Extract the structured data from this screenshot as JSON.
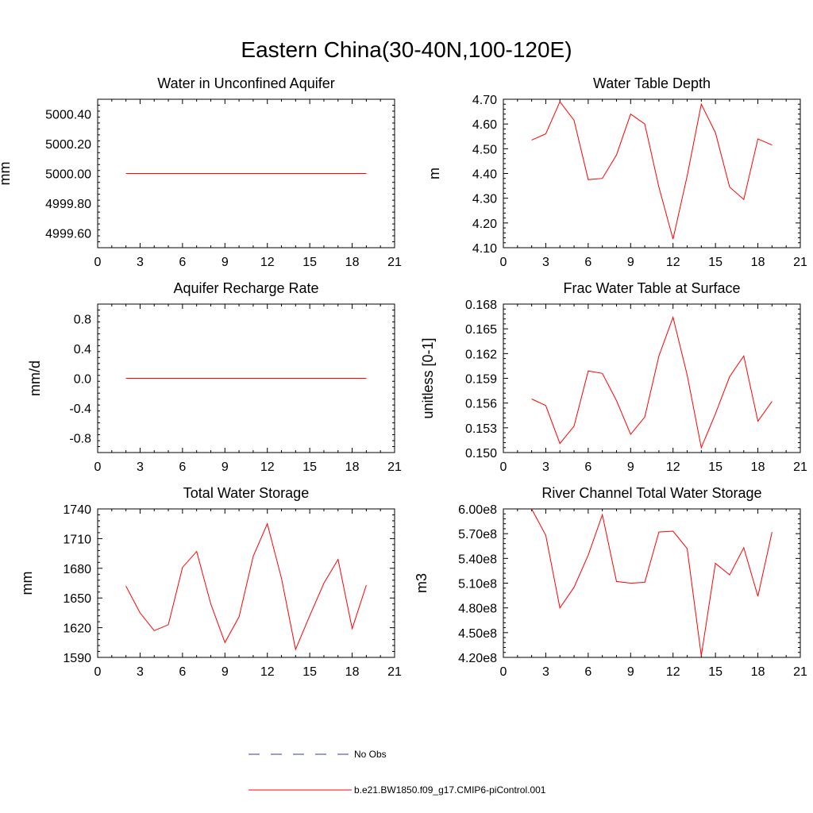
{
  "figure_title": "Eastern China(30-40N,100-120E)",
  "legend": {
    "items": [
      {
        "label": "No Obs",
        "color": "#3a3aa8",
        "dash": true
      },
      {
        "label": "b.e21.BW1850.f09_g17.CMIP6-piControl.001",
        "color": "#ff0000",
        "dash": false
      }
    ]
  },
  "chart_data": [
    {
      "type": "line",
      "title": "Water in Unconfined Aquifer",
      "ylabel": "mm",
      "xlim": [
        0,
        21
      ],
      "ylim": [
        4999.5,
        5000.5
      ],
      "xticks": [
        "0",
        "3",
        "6",
        "9",
        "12",
        "15",
        "18",
        "21"
      ],
      "yticks": [
        {
          "value": 4999.6,
          "label": "4999.60"
        },
        {
          "value": 4999.8,
          "label": "4999.80"
        },
        {
          "value": 5000.0,
          "label": "5000.00"
        },
        {
          "value": 5000.2,
          "label": "5000.20"
        },
        {
          "value": 5000.4,
          "label": "5000.40"
        }
      ],
      "x": [
        2,
        3,
        4,
        5,
        6,
        7,
        8,
        9,
        10,
        11,
        12,
        13,
        14,
        15,
        16,
        17,
        18,
        19
      ],
      "series": [
        {
          "values": [
            5000,
            5000,
            5000,
            5000,
            5000,
            5000,
            5000,
            5000,
            5000,
            5000,
            5000,
            5000,
            5000,
            5000,
            5000,
            5000,
            5000,
            5000
          ],
          "color": "#ff0000"
        }
      ]
    },
    {
      "type": "line",
      "title": "Water Table Depth",
      "ylabel": "m",
      "xlim": [
        0,
        21
      ],
      "ylim": [
        4.1,
        4.7
      ],
      "xticks": [
        "0",
        "3",
        "6",
        "9",
        "12",
        "15",
        "18",
        "21"
      ],
      "yticks": [
        {
          "value": 4.1,
          "label": "4.10"
        },
        {
          "value": 4.2,
          "label": "4.20"
        },
        {
          "value": 4.3,
          "label": "4.30"
        },
        {
          "value": 4.4,
          "label": "4.40"
        },
        {
          "value": 4.5,
          "label": "4.50"
        },
        {
          "value": 4.6,
          "label": "4.60"
        },
        {
          "value": 4.7,
          "label": "4.70"
        }
      ],
      "x": [
        2,
        3,
        4,
        5,
        6,
        7,
        8,
        9,
        10,
        11,
        12,
        13,
        14,
        15,
        16,
        17,
        18,
        19
      ],
      "series": [
        {
          "values": [
            4.535,
            4.56,
            4.69,
            4.615,
            4.375,
            4.38,
            4.475,
            4.64,
            4.6,
            4.345,
            4.135,
            4.39,
            4.68,
            4.565,
            4.345,
            4.295,
            4.54,
            4.515
          ],
          "color": "#ff0000"
        }
      ]
    },
    {
      "type": "line",
      "title": "Aquifer Recharge Rate",
      "ylabel": "mm/d",
      "xlim": [
        0,
        21
      ],
      "ylim": [
        -1,
        1
      ],
      "xticks": [
        "0",
        "3",
        "6",
        "9",
        "12",
        "15",
        "18",
        "21"
      ],
      "yticks": [
        {
          "value": -0.8,
          "label": "-0.8"
        },
        {
          "value": -0.4,
          "label": "-0.4"
        },
        {
          "value": 0.0,
          "label": "0.0"
        },
        {
          "value": 0.4,
          "label": "0.4"
        },
        {
          "value": 0.8,
          "label": "0.8"
        }
      ],
      "x": [
        2,
        3,
        4,
        5,
        6,
        7,
        8,
        9,
        10,
        11,
        12,
        13,
        14,
        15,
        16,
        17,
        18,
        19
      ],
      "series": [
        {
          "values": [
            0,
            0,
            0,
            0,
            0,
            0,
            0,
            0,
            0,
            0,
            0,
            0,
            0,
            0,
            0,
            0,
            0,
            0
          ],
          "color": "#ff0000"
        }
      ]
    },
    {
      "type": "line",
      "title": "Frac Water Table at Surface",
      "ylabel": "unitless [0-1]",
      "xlim": [
        0,
        21
      ],
      "ylim": [
        0.15,
        0.168
      ],
      "xticks": [
        "0",
        "3",
        "6",
        "9",
        "12",
        "15",
        "18",
        "21"
      ],
      "yticks": [
        {
          "value": 0.15,
          "label": "0.150"
        },
        {
          "value": 0.153,
          "label": "0.153"
        },
        {
          "value": 0.156,
          "label": "0.156"
        },
        {
          "value": 0.159,
          "label": "0.159"
        },
        {
          "value": 0.162,
          "label": "0.162"
        },
        {
          "value": 0.165,
          "label": "0.165"
        },
        {
          "value": 0.168,
          "label": "0.168"
        }
      ],
      "x": [
        2,
        3,
        4,
        5,
        6,
        7,
        8,
        9,
        10,
        11,
        12,
        13,
        14,
        15,
        16,
        17,
        18,
        19
      ],
      "series": [
        {
          "values": [
            0.1565,
            0.1557,
            0.1511,
            0.1532,
            0.1599,
            0.1596,
            0.1563,
            0.1522,
            0.1543,
            0.1617,
            0.1664,
            0.1594,
            0.1506,
            0.1547,
            0.1592,
            0.1617,
            0.1538,
            0.1562
          ],
          "color": "#ff0000"
        }
      ]
    },
    {
      "type": "line",
      "title": "Total Water Storage",
      "ylabel": "mm",
      "xlim": [
        0,
        21
      ],
      "ylim": [
        1590,
        1740
      ],
      "xticks": [
        "0",
        "3",
        "6",
        "9",
        "12",
        "15",
        "18",
        "21"
      ],
      "yticks": [
        {
          "value": 1590,
          "label": "1590"
        },
        {
          "value": 1620,
          "label": "1620"
        },
        {
          "value": 1650,
          "label": "1650"
        },
        {
          "value": 1680,
          "label": "1680"
        },
        {
          "value": 1710,
          "label": "1710"
        },
        {
          "value": 1740,
          "label": "1740"
        }
      ],
      "x": [
        2,
        3,
        4,
        5,
        6,
        7,
        8,
        9,
        10,
        11,
        12,
        13,
        14,
        15,
        16,
        17,
        18,
        19
      ],
      "series": [
        {
          "values": [
            1662,
            1635,
            1617,
            1623,
            1681,
            1697,
            1644,
            1605,
            1631,
            1692,
            1725,
            1670,
            1598,
            1632,
            1665,
            1689,
            1619,
            1663
          ],
          "color": "#ff0000"
        }
      ]
    },
    {
      "type": "line",
      "title": "River Channel Total Water Storage",
      "ylabel": "m3",
      "xlim": [
        0,
        21
      ],
      "ylim": [
        420000000,
        600000000
      ],
      "xticks": [
        "0",
        "3",
        "6",
        "9",
        "12",
        "15",
        "18",
        "21"
      ],
      "yticks": [
        {
          "value": 420000000,
          "label": "4.20e8"
        },
        {
          "value": 450000000,
          "label": "4.50e8"
        },
        {
          "value": 480000000,
          "label": "4.80e8"
        },
        {
          "value": 510000000,
          "label": "5.10e8"
        },
        {
          "value": 540000000,
          "label": "5.40e8"
        },
        {
          "value": 570000000,
          "label": "5.70e8"
        },
        {
          "value": 600000000,
          "label": "6.00e8"
        }
      ],
      "x": [
        2,
        3,
        4,
        5,
        6,
        7,
        8,
        9,
        10,
        11,
        12,
        13,
        14,
        15,
        16,
        17,
        18,
        19
      ],
      "series": [
        {
          "values": [
            600000000,
            568000000,
            480000000,
            505000000,
            544000000,
            593000000,
            512000000,
            510000000,
            511000000,
            572000000,
            573000000,
            552000000,
            422000000,
            534000000,
            520000000,
            553000000,
            494000000,
            572000000
          ],
          "color": "#ff0000"
        }
      ]
    }
  ]
}
